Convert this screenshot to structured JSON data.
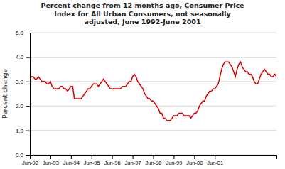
{
  "chart_data": {
    "type": "line",
    "title": "Percent change from 12 months ago, Consumer Price\nIndex for All Urban Consumers, not seasonally\nadjusted, June 1992-June 2001",
    "y_label": "Percent change",
    "color": "#dd0000",
    "grid": true,
    "ylim": [
      0,
      5
    ],
    "yticks": [
      {
        "value": 0,
        "label": "0.0"
      },
      {
        "value": 1,
        "label": "1.0"
      },
      {
        "value": 2,
        "label": "2.0"
      },
      {
        "value": 3,
        "label": "3.0"
      },
      {
        "value": 4,
        "label": "4.0"
      },
      {
        "value": 5,
        "label": "5.0"
      }
    ],
    "categories": [
      "Jun-92",
      null,
      null,
      null,
      null,
      null,
      null,
      null,
      null,
      null,
      null,
      null,
      "Jun-93",
      null,
      null,
      null,
      null,
      null,
      null,
      null,
      null,
      null,
      null,
      null,
      "Jun-94",
      null,
      null,
      null,
      null,
      null,
      null,
      null,
      null,
      null,
      null,
      null,
      "Jun-95",
      null,
      null,
      null,
      null,
      null,
      null,
      null,
      null,
      null,
      null,
      null,
      "Jun-96",
      null,
      null,
      null,
      null,
      null,
      null,
      null,
      null,
      null,
      null,
      null,
      "Jun-97",
      null,
      null,
      null,
      null,
      null,
      null,
      null,
      null,
      null,
      null,
      null,
      "Jun-98",
      null,
      null,
      null,
      null,
      null,
      null,
      null,
      null,
      null,
      null,
      null,
      "Jun-99",
      null,
      null,
      null,
      null,
      null,
      null,
      null,
      null,
      null,
      null,
      null,
      "Jun-00",
      null,
      null,
      null,
      null,
      null,
      null,
      null,
      null,
      null,
      null,
      null,
      "Jun-01",
      null,
      null,
      null,
      null,
      null,
      null,
      null,
      null,
      null,
      null,
      null,
      null,
      null,
      null,
      null,
      null,
      null,
      null,
      null,
      null,
      null,
      null,
      null,
      null,
      null,
      null,
      null,
      null,
      null,
      null,
      null,
      null,
      null,
      null,
      null,
      null
    ],
    "values": [
      3.1,
      3.2,
      3.2,
      3.1,
      3.1,
      3.2,
      3.1,
      3.0,
      3.0,
      3.0,
      2.9,
      2.9,
      3.0,
      2.8,
      2.7,
      2.7,
      2.7,
      2.7,
      2.8,
      2.8,
      2.7,
      2.7,
      2.6,
      2.7,
      2.8,
      2.8,
      2.3,
      2.3,
      2.3,
      2.3,
      2.3,
      2.4,
      2.5,
      2.6,
      2.7,
      2.7,
      2.8,
      2.9,
      2.9,
      2.9,
      2.8,
      2.9,
      3.0,
      3.1,
      3.0,
      2.9,
      2.8,
      2.7,
      2.7,
      2.7,
      2.7,
      2.7,
      2.7,
      2.7,
      2.8,
      2.8,
      2.8,
      2.9,
      3.0,
      3.0,
      3.2,
      3.3,
      3.2,
      3.0,
      2.9,
      2.8,
      2.7,
      2.5,
      2.4,
      2.3,
      2.3,
      2.2,
      2.2,
      2.1,
      2.0,
      1.9,
      1.7,
      1.7,
      1.5,
      1.5,
      1.4,
      1.4,
      1.4,
      1.5,
      1.6,
      1.6,
      1.6,
      1.7,
      1.7,
      1.7,
      1.6,
      1.6,
      1.6,
      1.6,
      1.5,
      1.6,
      1.7,
      1.7,
      1.8,
      2.0,
      2.1,
      2.2,
      2.2,
      2.4,
      2.5,
      2.6,
      2.6,
      2.7,
      2.7,
      2.8,
      2.9,
      3.2,
      3.5,
      3.7,
      3.8,
      3.8,
      3.8,
      3.7,
      3.6,
      3.4,
      3.2,
      3.5,
      3.7,
      3.8,
      3.6,
      3.5,
      3.4,
      3.4,
      3.3,
      3.3,
      3.2,
      3.0,
      2.9,
      2.9,
      3.1,
      3.3,
      3.4,
      3.5,
      3.4,
      3.3,
      3.3,
      3.2,
      3.2,
      3.3,
      3.2
    ]
  }
}
